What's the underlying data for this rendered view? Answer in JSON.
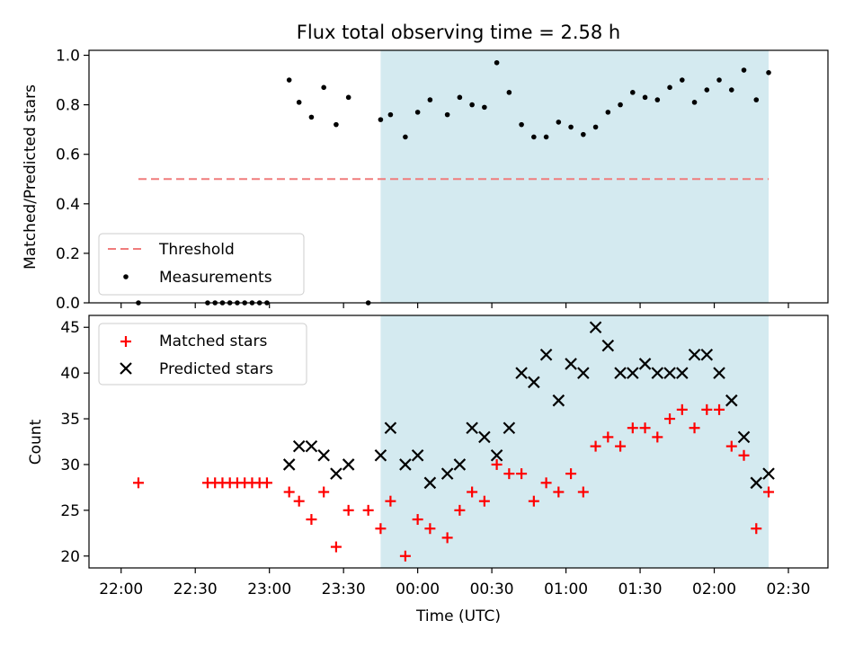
{
  "chart_data": [
    {
      "type": "scatter",
      "title": "Flux total observing time = 2.58 h",
      "ylabel": "Matched/Predicted stars",
      "ylim": [
        0,
        1.02
      ],
      "yticks": [
        "0.0",
        "0.2",
        "0.4",
        "0.6",
        "0.8",
        "1.0"
      ],
      "shaded_region": {
        "x_start": "23:45",
        "x_end": "02:22",
        "color": "#d4eaf0"
      },
      "legend": {
        "placement": "lower-left",
        "entries": [
          "Threshold",
          "Measurements"
        ]
      },
      "threshold": {
        "name": "Threshold",
        "value": 0.5,
        "x_start": "22:07",
        "x_end": "02:22",
        "color": "#f07c7c",
        "style": "dashed"
      },
      "series": [
        {
          "name": "Measurements",
          "color": "#000000",
          "marker": "dot",
          "points": [
            {
              "x": "22:07",
              "y": 0.0
            },
            {
              "x": "22:35",
              "y": 0.0
            },
            {
              "x": "22:38",
              "y": 0.0
            },
            {
              "x": "22:41",
              "y": 0.0
            },
            {
              "x": "22:44",
              "y": 0.0
            },
            {
              "x": "22:47",
              "y": 0.0
            },
            {
              "x": "22:50",
              "y": 0.0
            },
            {
              "x": "22:53",
              "y": 0.0
            },
            {
              "x": "22:56",
              "y": 0.0
            },
            {
              "x": "22:59",
              "y": 0.0
            },
            {
              "x": "23:08",
              "y": 0.9
            },
            {
              "x": "23:12",
              "y": 0.81
            },
            {
              "x": "23:17",
              "y": 0.75
            },
            {
              "x": "23:22",
              "y": 0.87
            },
            {
              "x": "23:27",
              "y": 0.72
            },
            {
              "x": "23:32",
              "y": 0.83
            },
            {
              "x": "23:40",
              "y": 0.0
            },
            {
              "x": "23:45",
              "y": 0.74
            },
            {
              "x": "23:49",
              "y": 0.76
            },
            {
              "x": "23:55",
              "y": 0.67
            },
            {
              "x": "24:00",
              "y": 0.77
            },
            {
              "x": "24:05",
              "y": 0.82
            },
            {
              "x": "24:12",
              "y": 0.76
            },
            {
              "x": "24:17",
              "y": 0.83
            },
            {
              "x": "24:22",
              "y": 0.8
            },
            {
              "x": "24:27",
              "y": 0.79
            },
            {
              "x": "24:32",
              "y": 0.97
            },
            {
              "x": "24:37",
              "y": 0.85
            },
            {
              "x": "24:42",
              "y": 0.72
            },
            {
              "x": "24:47",
              "y": 0.67
            },
            {
              "x": "24:52",
              "y": 0.67
            },
            {
              "x": "24:57",
              "y": 0.73
            },
            {
              "x": "25:02",
              "y": 0.71
            },
            {
              "x": "25:07",
              "y": 0.68
            },
            {
              "x": "25:12",
              "y": 0.71
            },
            {
              "x": "25:17",
              "y": 0.77
            },
            {
              "x": "25:22",
              "y": 0.8
            },
            {
              "x": "25:27",
              "y": 0.85
            },
            {
              "x": "25:32",
              "y": 0.83
            },
            {
              "x": "25:37",
              "y": 0.82
            },
            {
              "x": "25:42",
              "y": 0.87
            },
            {
              "x": "25:47",
              "y": 0.9
            },
            {
              "x": "25:52",
              "y": 0.81
            },
            {
              "x": "25:57",
              "y": 0.86
            },
            {
              "x": "26:02",
              "y": 0.9
            },
            {
              "x": "26:07",
              "y": 0.86
            },
            {
              "x": "26:12",
              "y": 0.94
            },
            {
              "x": "26:17",
              "y": 0.82
            },
            {
              "x": "26:22",
              "y": 0.93
            }
          ]
        }
      ]
    },
    {
      "type": "scatter",
      "xlabel": "Time (UTC)",
      "ylabel": "Count",
      "ylim": [
        18.7,
        46.3
      ],
      "yticks": [
        "20",
        "25",
        "30",
        "35",
        "40",
        "45"
      ],
      "xticks": [
        "22:00",
        "22:30",
        "23:00",
        "23:30",
        "00:00",
        "00:30",
        "01:00",
        "01:30",
        "02:00",
        "02:30"
      ],
      "shaded_region": {
        "x_start": "23:45",
        "x_end": "02:22",
        "color": "#d4eaf0"
      },
      "legend": {
        "placement": "upper-left",
        "entries": [
          "Matched stars",
          "Predicted stars"
        ]
      },
      "series": [
        {
          "name": "Matched stars",
          "color": "#ff0000",
          "marker": "plus",
          "points": [
            {
              "x": "22:07",
              "y": 28
            },
            {
              "x": "22:35",
              "y": 28
            },
            {
              "x": "22:38",
              "y": 28
            },
            {
              "x": "22:41",
              "y": 28
            },
            {
              "x": "22:44",
              "y": 28
            },
            {
              "x": "22:47",
              "y": 28
            },
            {
              "x": "22:50",
              "y": 28
            },
            {
              "x": "22:53",
              "y": 28
            },
            {
              "x": "22:56",
              "y": 28
            },
            {
              "x": "22:59",
              "y": 28
            },
            {
              "x": "23:08",
              "y": 27
            },
            {
              "x": "23:12",
              "y": 26
            },
            {
              "x": "23:17",
              "y": 24
            },
            {
              "x": "23:22",
              "y": 27
            },
            {
              "x": "23:27",
              "y": 21
            },
            {
              "x": "23:32",
              "y": 25
            },
            {
              "x": "23:40",
              "y": 25
            },
            {
              "x": "23:45",
              "y": 23
            },
            {
              "x": "23:49",
              "y": 26
            },
            {
              "x": "23:55",
              "y": 20
            },
            {
              "x": "24:00",
              "y": 24
            },
            {
              "x": "24:05",
              "y": 23
            },
            {
              "x": "24:12",
              "y": 22
            },
            {
              "x": "24:17",
              "y": 25
            },
            {
              "x": "24:22",
              "y": 27
            },
            {
              "x": "24:27",
              "y": 26
            },
            {
              "x": "24:32",
              "y": 30
            },
            {
              "x": "24:37",
              "y": 29
            },
            {
              "x": "24:42",
              "y": 29
            },
            {
              "x": "24:47",
              "y": 26
            },
            {
              "x": "24:52",
              "y": 28
            },
            {
              "x": "24:57",
              "y": 27
            },
            {
              "x": "25:02",
              "y": 29
            },
            {
              "x": "25:07",
              "y": 27
            },
            {
              "x": "25:12",
              "y": 32
            },
            {
              "x": "25:17",
              "y": 33
            },
            {
              "x": "25:22",
              "y": 32
            },
            {
              "x": "25:27",
              "y": 34
            },
            {
              "x": "25:32",
              "y": 34
            },
            {
              "x": "25:37",
              "y": 33
            },
            {
              "x": "25:42",
              "y": 35
            },
            {
              "x": "25:47",
              "y": 36
            },
            {
              "x": "25:52",
              "y": 34
            },
            {
              "x": "25:57",
              "y": 36
            },
            {
              "x": "26:02",
              "y": 36
            },
            {
              "x": "26:07",
              "y": 32
            },
            {
              "x": "26:12",
              "y": 31
            },
            {
              "x": "26:17",
              "y": 23
            },
            {
              "x": "26:22",
              "y": 27
            }
          ]
        },
        {
          "name": "Predicted stars",
          "color": "#000000",
          "marker": "x",
          "points": [
            {
              "x": "23:08",
              "y": 30
            },
            {
              "x": "23:12",
              "y": 32
            },
            {
              "x": "23:17",
              "y": 32
            },
            {
              "x": "23:22",
              "y": 31
            },
            {
              "x": "23:27",
              "y": 29
            },
            {
              "x": "23:32",
              "y": 30
            },
            {
              "x": "23:45",
              "y": 31
            },
            {
              "x": "23:49",
              "y": 34
            },
            {
              "x": "23:55",
              "y": 30
            },
            {
              "x": "24:00",
              "y": 31
            },
            {
              "x": "24:05",
              "y": 28
            },
            {
              "x": "24:12",
              "y": 29
            },
            {
              "x": "24:17",
              "y": 30
            },
            {
              "x": "24:22",
              "y": 34
            },
            {
              "x": "24:27",
              "y": 33
            },
            {
              "x": "24:32",
              "y": 31
            },
            {
              "x": "24:37",
              "y": 34
            },
            {
              "x": "24:42",
              "y": 40
            },
            {
              "x": "24:47",
              "y": 39
            },
            {
              "x": "24:52",
              "y": 42
            },
            {
              "x": "24:57",
              "y": 37
            },
            {
              "x": "25:02",
              "y": 41
            },
            {
              "x": "25:07",
              "y": 40
            },
            {
              "x": "25:12",
              "y": 45
            },
            {
              "x": "25:17",
              "y": 43
            },
            {
              "x": "25:22",
              "y": 40
            },
            {
              "x": "25:27",
              "y": 40
            },
            {
              "x": "25:32",
              "y": 41
            },
            {
              "x": "25:37",
              "y": 40
            },
            {
              "x": "25:42",
              "y": 40
            },
            {
              "x": "25:47",
              "y": 40
            },
            {
              "x": "25:52",
              "y": 42
            },
            {
              "x": "25:57",
              "y": 42
            },
            {
              "x": "26:02",
              "y": 40
            },
            {
              "x": "26:07",
              "y": 37
            },
            {
              "x": "26:12",
              "y": 33
            },
            {
              "x": "26:17",
              "y": 28
            },
            {
              "x": "26:22",
              "y": 29
            }
          ]
        }
      ]
    }
  ]
}
